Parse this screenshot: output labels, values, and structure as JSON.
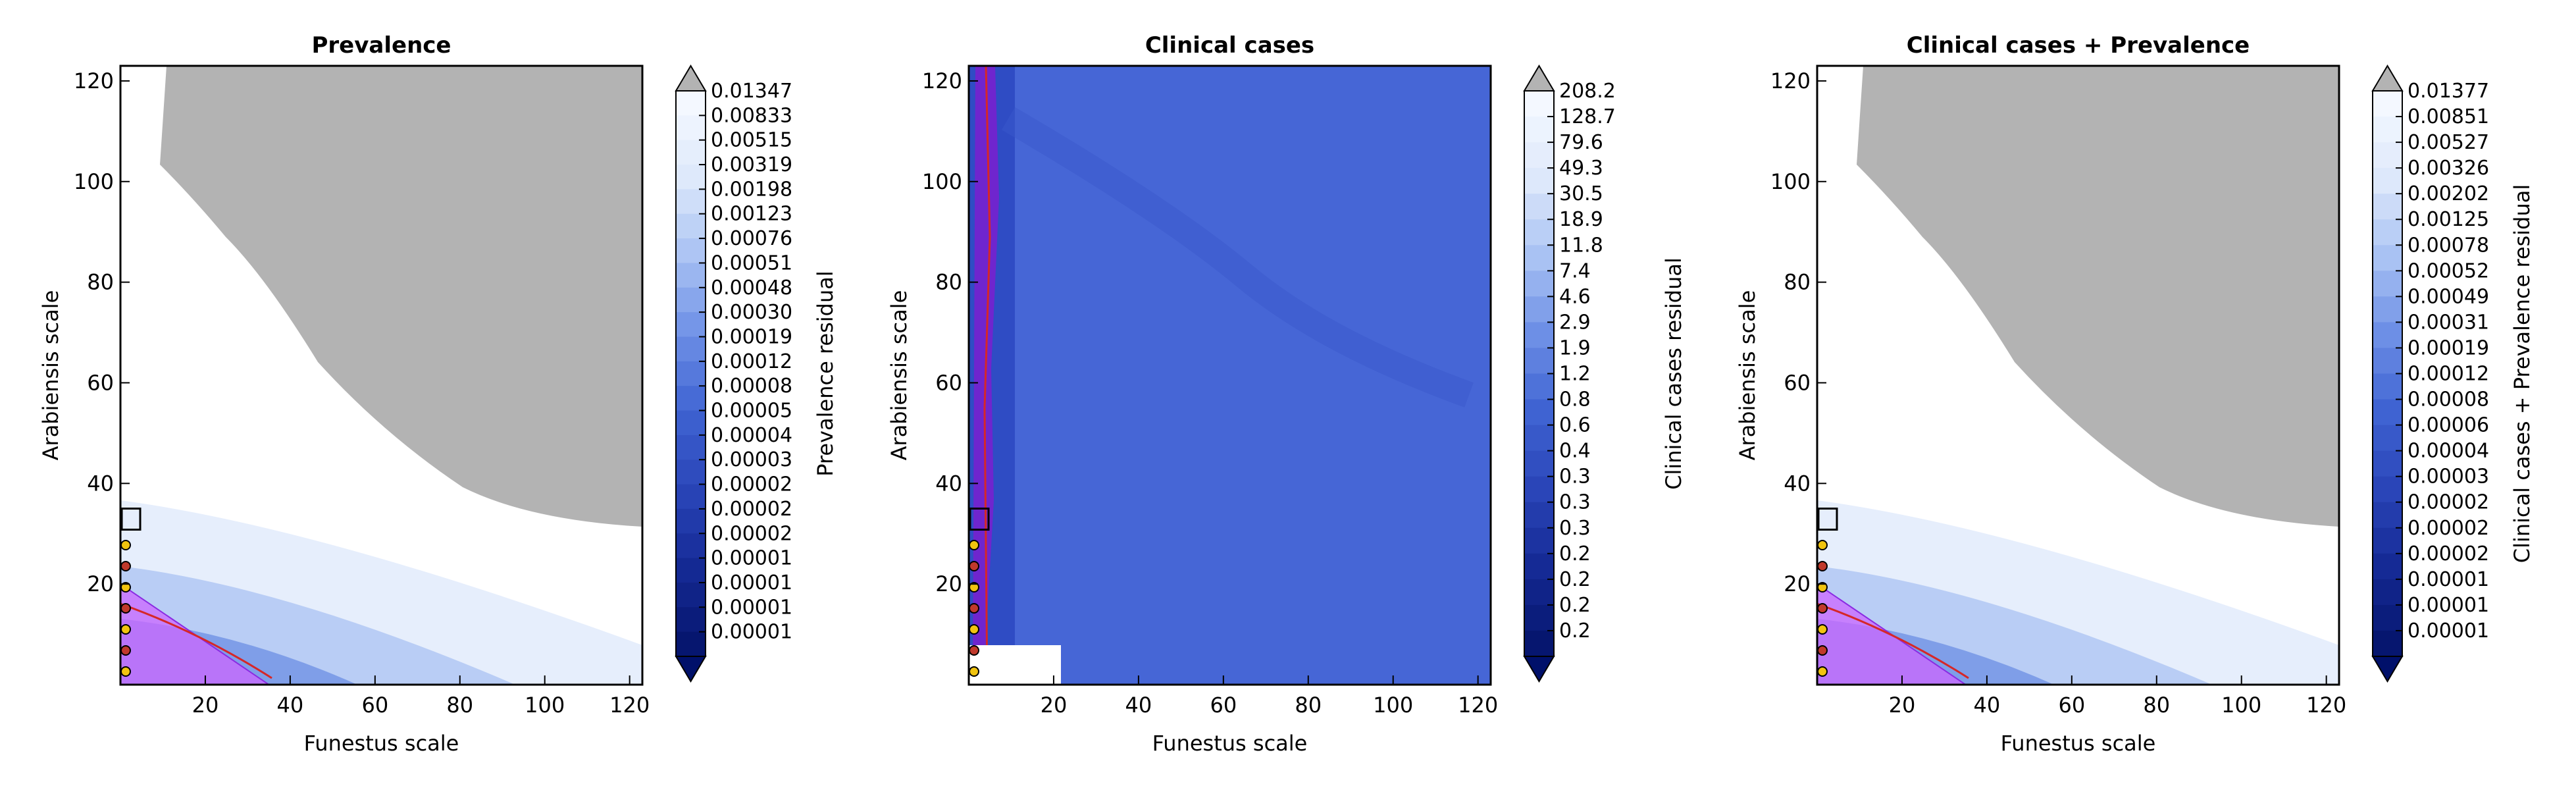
{
  "figure": {
    "background": "#ffffff",
    "colors": {
      "masked_gray": "#b3b3b3",
      "triangle_fill": "#cc66ff",
      "triangle_edge": "#8a2be2",
      "contour_line": "#d62728",
      "frame": "#000000"
    }
  },
  "chart_data": [
    {
      "type": "heatmap",
      "title": "Prevalence",
      "xlabel": "Funestus scale",
      "ylabel": "Arabiensis scale",
      "xlim": [
        0,
        123
      ],
      "ylim": [
        0,
        123
      ],
      "xticks": [
        20,
        40,
        60,
        80,
        100,
        120
      ],
      "yticks": [
        20,
        40,
        60,
        80,
        100,
        120
      ],
      "colorbar_label": "Prevalence residual",
      "colorbar_ticks": [
        "0.01347",
        "0.00833",
        "0.00515",
        "0.00319",
        "0.00198",
        "0.00123",
        "0.00076",
        "0.00051",
        "0.00048",
        "0.00030",
        "0.00019",
        "0.00012",
        "0.00008",
        "0.00005",
        "0.00004",
        "0.00003",
        "0.00002",
        "0.00002",
        "0.00002",
        "0.00001",
        "0.00001",
        "0.00001",
        "0.00001"
      ],
      "colorbar_extend": "both",
      "masked_region": "gray (above top of colour scale) across upper right",
      "has_triangle": true
    },
    {
      "type": "heatmap",
      "title": "Clinical cases",
      "xlabel": "Funestus scale",
      "ylabel": "Arabiensis scale",
      "xlim": [
        0,
        123
      ],
      "ylim": [
        0,
        123
      ],
      "xticks": [
        20,
        40,
        60,
        80,
        100,
        120
      ],
      "yticks": [
        20,
        40,
        60,
        80,
        100,
        120
      ],
      "colorbar_label": "Clinical cases residual",
      "colorbar_ticks": [
        "208.2",
        "128.7",
        "79.6",
        "49.3",
        "30.5",
        "18.9",
        "11.8",
        "7.4",
        "4.6",
        "2.9",
        "1.9",
        "1.2",
        "0.8",
        "0.6",
        "0.4",
        "0.3",
        "0.3",
        "0.3",
        "0.2",
        "0.2",
        "0.2",
        "0.2"
      ],
      "colorbar_extend": "both",
      "masked_region": "none",
      "has_triangle": false
    },
    {
      "type": "heatmap",
      "title": "Clinical cases + Prevalence",
      "xlabel": "Funestus scale",
      "ylabel": "Arabiensis scale",
      "xlim": [
        0,
        123
      ],
      "ylim": [
        0,
        123
      ],
      "xticks": [
        20,
        40,
        60,
        80,
        100,
        120
      ],
      "yticks": [
        20,
        40,
        60,
        80,
        100,
        120
      ],
      "colorbar_label": "Clinical cases + Prevalence residual",
      "colorbar_ticks": [
        "0.01377",
        "0.00851",
        "0.00527",
        "0.00326",
        "0.00202",
        "0.00125",
        "0.00078",
        "0.00052",
        "0.00049",
        "0.00031",
        "0.00019",
        "0.00012",
        "0.00008",
        "0.00006",
        "0.00004",
        "0.00003",
        "0.00002",
        "0.00002",
        "0.00002",
        "0.00001",
        "0.00001",
        "0.00001"
      ],
      "colorbar_extend": "both",
      "masked_region": "gray (above top of colour scale) across upper right",
      "has_triangle": true
    }
  ]
}
